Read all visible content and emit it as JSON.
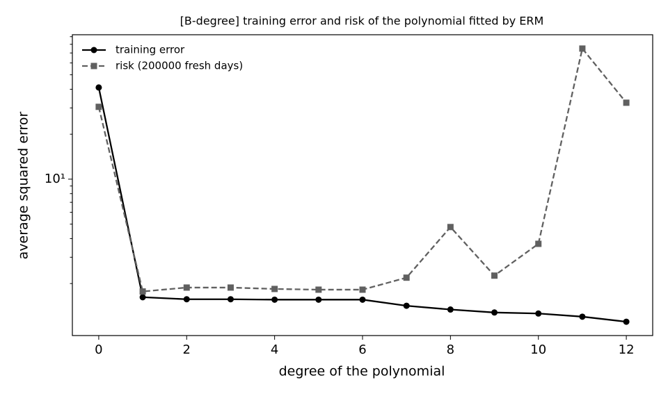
{
  "chart_data": {
    "type": "line",
    "title": "[B-degree] training error and risk of the polynomial fitted by ERM",
    "xlabel": "degree of the polynomial",
    "ylabel": "average squared error",
    "x": [
      0,
      1,
      2,
      3,
      4,
      5,
      6,
      7,
      8,
      9,
      10,
      11,
      12
    ],
    "series": [
      {
        "name": "training error",
        "color": "#000000",
        "dash": false,
        "marker": "circle",
        "values": [
          41.1,
          1.62,
          1.57,
          1.57,
          1.56,
          1.56,
          1.56,
          1.42,
          1.34,
          1.28,
          1.26,
          1.2,
          1.11
        ]
      },
      {
        "name": "risk (200000 fresh days)",
        "color": "#606060",
        "dash": true,
        "marker": "square",
        "values": [
          30.5,
          1.77,
          1.88,
          1.88,
          1.84,
          1.82,
          1.82,
          2.19,
          4.78,
          2.26,
          3.69,
          74.9,
          32.5
        ]
      }
    ],
    "xlim": [
      -0.6,
      12.6
    ],
    "xticks": [
      0,
      2,
      4,
      6,
      8,
      10,
      12
    ],
    "ylim": [
      0.897,
      92.7
    ],
    "ylog": true,
    "yticks": [
      {
        "value": 10,
        "label": "10¹"
      }
    ],
    "yminorticks": [
      2,
      3,
      4,
      5,
      6,
      7,
      8,
      9,
      20,
      30,
      40,
      50,
      60,
      70,
      80,
      90
    ],
    "legend": "upper left"
  }
}
